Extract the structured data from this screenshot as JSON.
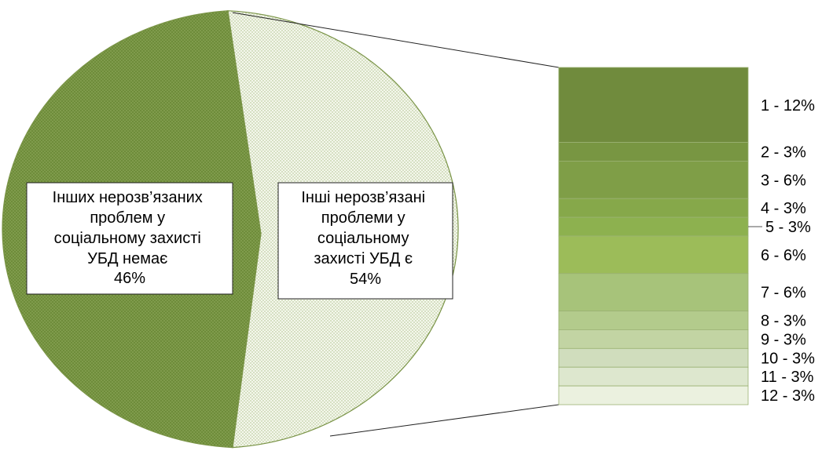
{
  "chart_data": {
    "type": "pie",
    "title": "",
    "pie": {
      "slices": [
        {
          "label": "Інших нерозв’язаних проблем у соціальному захисті УБД немає",
          "value": 46,
          "value_label": "46%",
          "color": "#6e8c3a",
          "pattern": "dots-dark"
        },
        {
          "label": "Інші нерозв’язані проблеми у соціальному захисті УБД є",
          "value": 54,
          "value_label": "54%",
          "color": "#e6eed6",
          "pattern": "dots-light"
        }
      ]
    },
    "breakdown": {
      "type": "bar-of-pie",
      "parent": "Інші нерозв’язані проблеми у соціальному захисті УБД є",
      "items": [
        {
          "label": "1 - 12%",
          "value": 12,
          "color": "#708b3d"
        },
        {
          "label": "2 - 3%",
          "value": 3,
          "color": "#789642"
        },
        {
          "label": "3 - 6%",
          "value": 6,
          "color": "#7f9e47"
        },
        {
          "label": "4 - 3%",
          "value": 3,
          "color": "#86a84a"
        },
        {
          "label": "5 - 3%",
          "value": 3,
          "color": "#8db14f"
        },
        {
          "label": "6 - 6%",
          "value": 6,
          "color": "#9cbc59"
        },
        {
          "label": "7 - 6%",
          "value": 6,
          "color": "#a7c37a"
        },
        {
          "label": "8 - 3%",
          "value": 3,
          "color": "#b3cb8c"
        },
        {
          "label": "9 - 3%",
          "value": 3,
          "color": "#c2d4a3"
        },
        {
          "label": "10 - 3%",
          "value": 3,
          "color": "#d0ddbd"
        },
        {
          "label": "11 - 3%",
          "value": 3,
          "color": "#dde7ce"
        },
        {
          "label": "12 - 3%",
          "value": 3,
          "color": "#ebf1df"
        }
      ]
    },
    "legend": "none",
    "grid": false
  }
}
